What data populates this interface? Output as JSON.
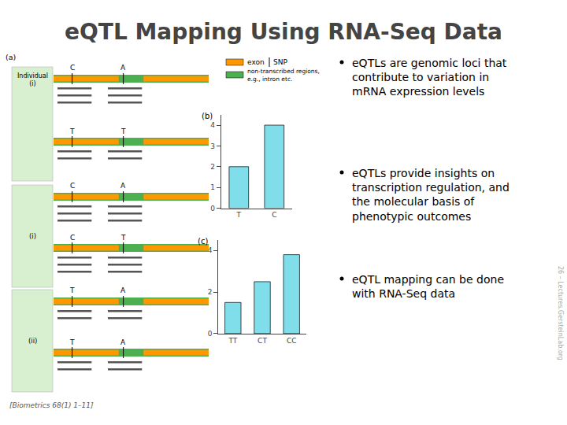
{
  "title": "eQTL Mapping Using RNA-Seq Data",
  "chart_data": [
    {
      "type": "bar",
      "title": "(b)",
      "categories": [
        "T",
        "C"
      ],
      "values": [
        2.0,
        4.0
      ],
      "color": "#80deea",
      "ylim": [
        0,
        4.5
      ],
      "yticks": [
        0,
        1,
        2,
        3,
        4
      ],
      "grid": false
    },
    {
      "type": "bar",
      "title": "(c)",
      "categories": [
        "TT",
        "CT",
        "CC"
      ],
      "values": [
        1.5,
        2.5,
        3.8
      ],
      "color": "#80deea",
      "ylim": [
        0,
        4.5
      ],
      "yticks": [
        0,
        2,
        4
      ],
      "grid": false
    }
  ],
  "diagram": {
    "panel_label": "(a)",
    "read_color": "#555555",
    "box_color": "#d8f0d0",
    "individuals": [
      {
        "label": "Individual\n(i)",
        "tracks": [
          {
            "alleles": [
              "C",
              "A"
            ],
            "reads": 3
          },
          {
            "alleles": [
              "T",
              "T"
            ],
            "reads": 2
          }
        ]
      },
      {
        "label": "(i)",
        "tracks": [
          {
            "alleles": [
              "C",
              "A"
            ],
            "reads": 3
          },
          {
            "alleles": [
              "C",
              "T"
            ],
            "reads": 3
          }
        ]
      },
      {
        "label": "(ii)",
        "tracks": [
          {
            "alleles": [
              "T",
              "A"
            ],
            "reads": 2
          },
          {
            "alleles": [
              "T",
              "A"
            ],
            "reads": 2
          }
        ]
      }
    ],
    "legend_items": [
      {
        "label": "exon",
        "color": "#ff9800",
        "marker": "square"
      },
      {
        "label": "SNP",
        "color": "#000000",
        "marker": "line"
      },
      {
        "label": "non-transcribed regions,\ne.g., intron etc.",
        "color": "#4caf50",
        "marker": "square"
      }
    ]
  },
  "bullet_points": [
    "eQTLs are genomic loci that\ncontribute to variation in\nmRNA expression levels",
    "eQTLs provide insights on\ntranscription regulation, and\nthe molecular basis of\nphenotypic outcomes",
    "eQTL mapping can be done\nwith RNA-Seq data"
  ],
  "footnote": "[Biometrics 68(1) 1–11]",
  "watermark": "26 – Lectures.GersteinLab.org"
}
